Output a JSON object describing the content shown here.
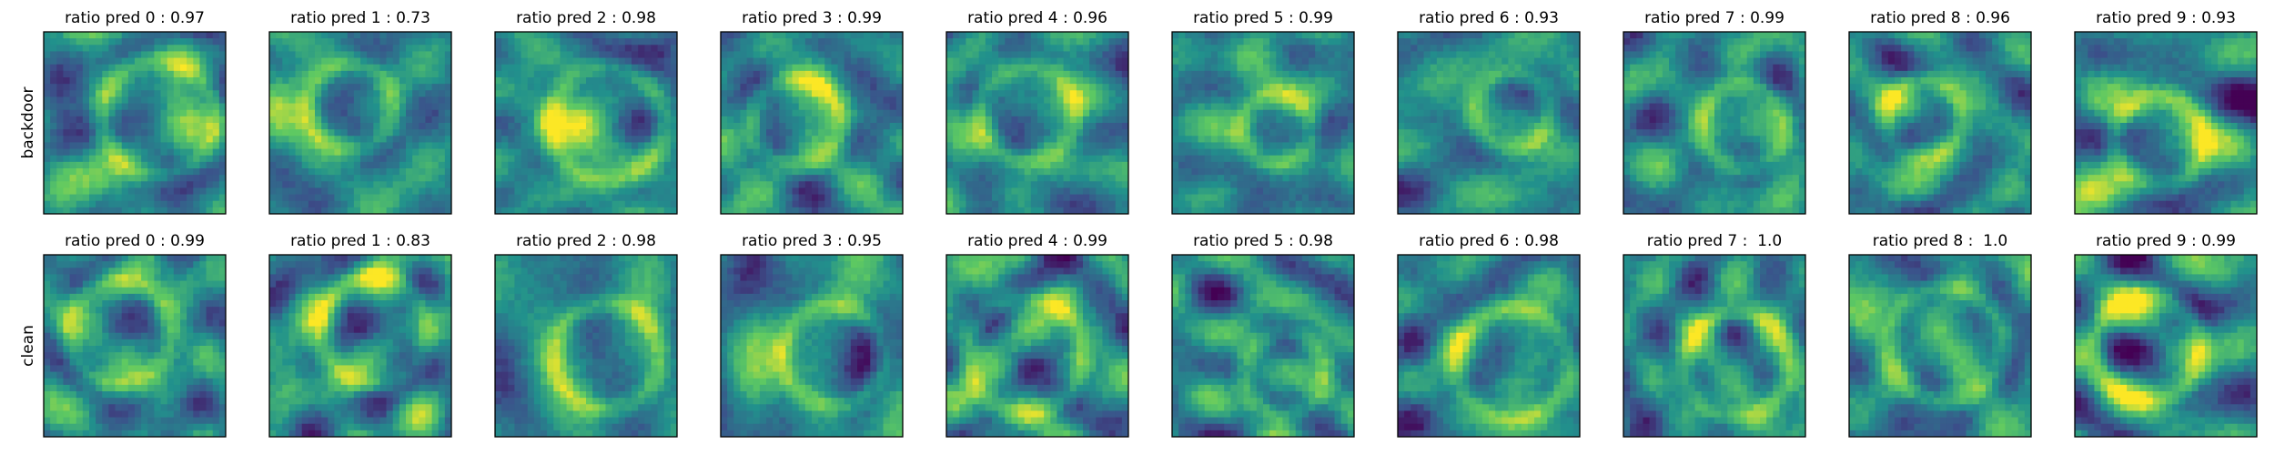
{
  "rows": [
    {
      "label": "backdoor",
      "titles": [
        "ratio pred 0 : 0.97",
        "ratio pred 1 : 0.73",
        "ratio pred 2 : 0.98",
        "ratio pred 3 : 0.99",
        "ratio pred 4 : 0.96",
        "ratio pred 5 : 0.99",
        "ratio pred 6 : 0.93",
        "ratio pred 7 : 0.99",
        "ratio pred 8 : 0.96",
        "ratio pred 9 : 0.93"
      ]
    },
    {
      "label": "clean",
      "titles": [
        "ratio pred 0 : 0.99",
        "ratio pred 1 : 0.83",
        "ratio pred 2 : 0.98",
        "ratio pred 3 : 0.95",
        "ratio pred 4 : 0.99",
        "ratio pred 5 : 0.98",
        "ratio pred 6 : 0.98",
        "ratio pred 7 :  1.0",
        "ratio pred 8 :  1.0",
        "ratio pred 9 : 0.99"
      ]
    }
  ]
}
